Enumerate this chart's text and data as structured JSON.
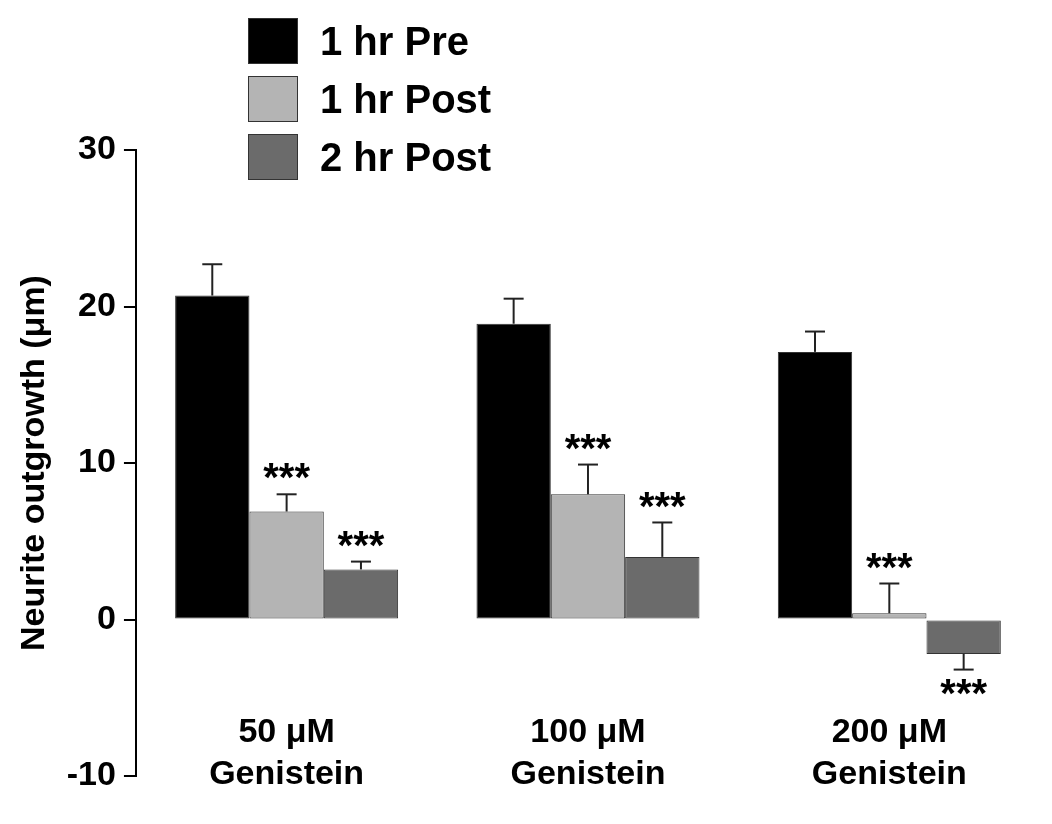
{
  "chart_data": {
    "type": "bar",
    "ylabel": "Neurite outgrowth (μm)",
    "categories": [
      "50 μM Genistein",
      "100 μM Genistein",
      "200 μM Genistein"
    ],
    "series": [
      {
        "name": "1 hr Pre",
        "color": "#000000",
        "values": [
          20.7,
          18.9,
          17.1
        ],
        "errors": [
          [
            20.7,
            22.7
          ],
          [
            18.9,
            20.5
          ],
          [
            17.1,
            18.4
          ]
        ]
      },
      {
        "name": "1 hr Post",
        "color": "#b4b4b4",
        "values": [
          6.9,
          8.0,
          0.4
        ],
        "errors": [
          [
            6.9,
            8.0
          ],
          [
            8.0,
            9.9
          ],
          [
            0.4,
            2.3
          ]
        ]
      },
      {
        "name": "2 hr Post",
        "color": "#6b6b6b",
        "values": [
          3.2,
          4.0,
          -2.2
        ],
        "errors": [
          [
            3.2,
            3.7
          ],
          [
            4.0,
            6.2
          ],
          [
            -3.2,
            -2.2
          ]
        ]
      }
    ],
    "annotations": [
      {
        "text": "***",
        "x": "50 μM Genistein",
        "y": 8.0
      },
      "***",
      {
        "text": "***",
        "x": "100 μM Genistein",
        "y": 9.9
      },
      "***",
      {
        "text": "***",
        "x": "200 μM Genistein",
        "y": 2.3
      },
      "***"
    ],
    "ylim": [
      -10,
      30
    ],
    "yticks": [
      -10,
      0,
      10,
      20,
      30
    ],
    "grid": false,
    "legend": "top left"
  }
}
